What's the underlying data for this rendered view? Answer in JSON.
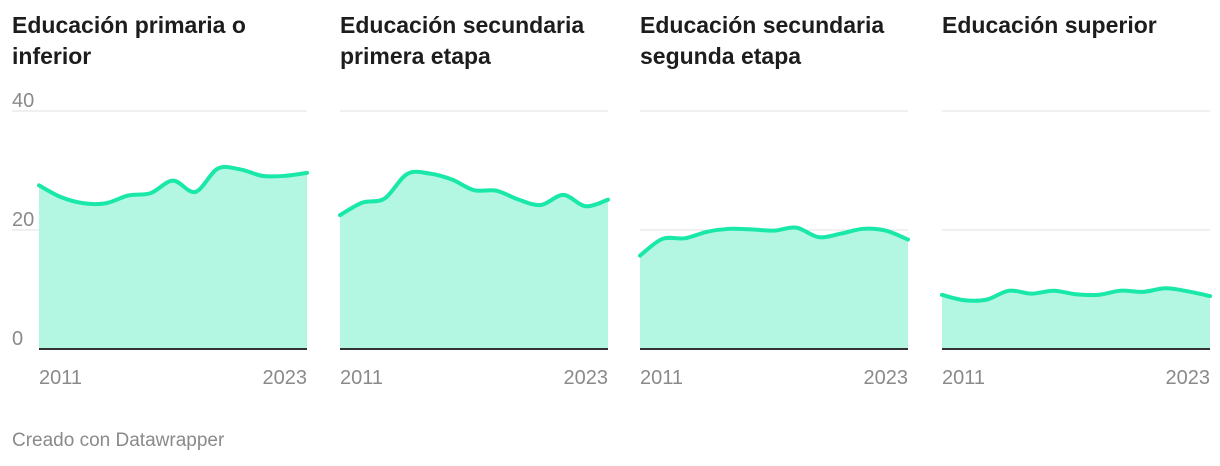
{
  "footer": "Creado con Datawrapper",
  "colors": {
    "line": "#19e8a8",
    "area": "#b3f7e3",
    "grid": "#e2e2e2",
    "axis": "#333333",
    "tick": "#8a8a8a"
  },
  "chart_data": [
    {
      "type": "area",
      "title": "Educación primaria o inferior",
      "x": [
        2011,
        2012,
        2013,
        2014,
        2015,
        2016,
        2017,
        2018,
        2019,
        2020,
        2021,
        2022,
        2023
      ],
      "values": [
        27.5,
        25.5,
        24.5,
        24.5,
        25.8,
        26.2,
        28.3,
        26.4,
        30.3,
        30.2,
        29.1,
        29.1,
        29.6
      ],
      "ylim": [
        0,
        40
      ],
      "yticks": [
        "0",
        "20",
        "40"
      ],
      "xticks": [
        "2011",
        "2023"
      ]
    },
    {
      "type": "area",
      "title": "Educación secundaria primera etapa",
      "x": [
        2011,
        2012,
        2013,
        2014,
        2015,
        2016,
        2017,
        2018,
        2019,
        2020,
        2021,
        2022,
        2023
      ],
      "values": [
        22.5,
        24.6,
        25.3,
        29.4,
        29.5,
        28.5,
        26.7,
        26.6,
        25.1,
        24.2,
        25.9,
        24.0,
        25.1
      ],
      "ylim": [
        0,
        40
      ],
      "yticks": [
        "0",
        "20",
        "40"
      ],
      "xticks": [
        "2011",
        "2023"
      ]
    },
    {
      "type": "area",
      "title": "Educación secundaria segunda etapa",
      "x": [
        2011,
        2012,
        2013,
        2014,
        2015,
        2016,
        2017,
        2018,
        2019,
        2020,
        2021,
        2022,
        2023
      ],
      "values": [
        15.7,
        18.5,
        18.6,
        19.7,
        20.2,
        20.1,
        19.9,
        20.4,
        18.8,
        19.4,
        20.2,
        19.9,
        18.4
      ],
      "ylim": [
        0,
        40
      ],
      "yticks": [
        "0",
        "20",
        "40"
      ],
      "xticks": [
        "2011",
        "2023"
      ]
    },
    {
      "type": "area",
      "title": "Educación superior",
      "x": [
        2011,
        2012,
        2013,
        2014,
        2015,
        2016,
        2017,
        2018,
        2019,
        2020,
        2021,
        2022,
        2023
      ],
      "values": [
        9.1,
        8.2,
        8.3,
        9.8,
        9.3,
        9.8,
        9.2,
        9.1,
        9.8,
        9.6,
        10.2,
        9.7,
        8.9
      ],
      "ylim": [
        0,
        40
      ],
      "yticks": [
        "0",
        "20",
        "40"
      ],
      "xticks": [
        "2011",
        "2023"
      ]
    }
  ]
}
